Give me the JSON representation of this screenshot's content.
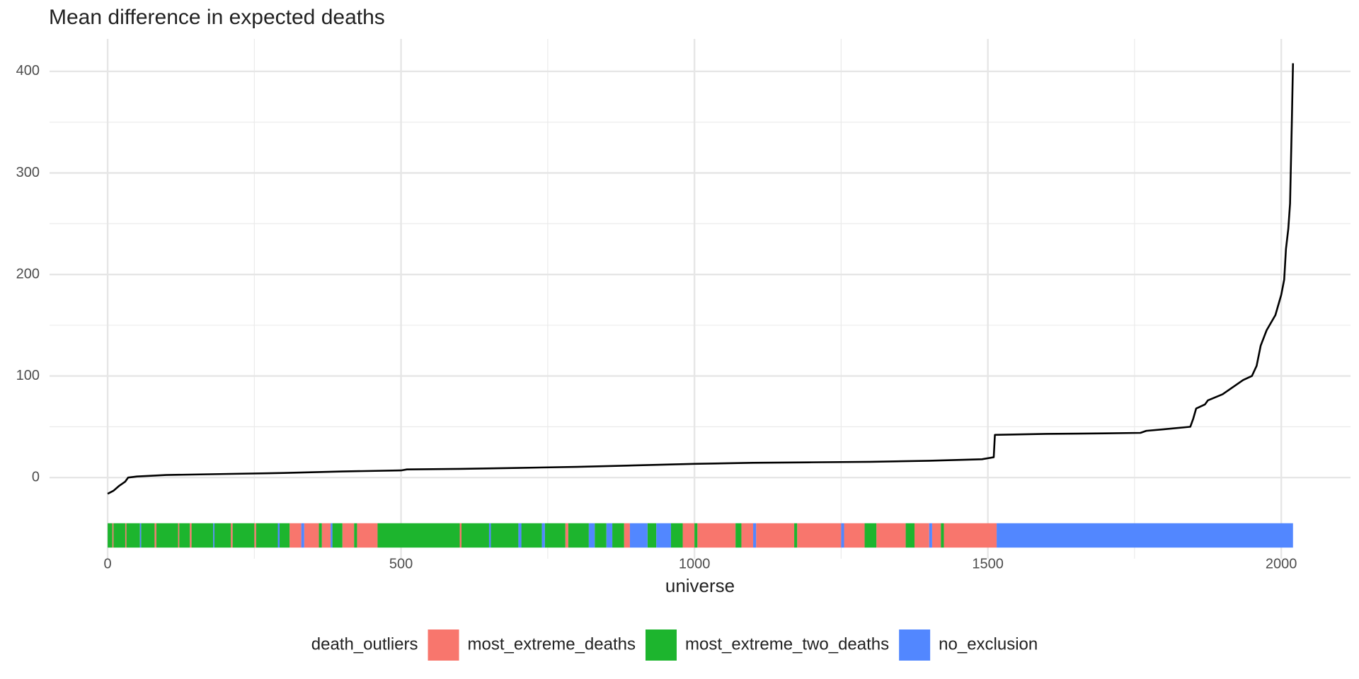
{
  "chart_data": {
    "type": "line",
    "title": "Mean difference in expected deaths",
    "x_label": "universe",
    "xlim": [
      -99,
      2118
    ],
    "xticks": [
      0,
      500,
      1000,
      1500,
      2000
    ],
    "xminor": [
      250,
      750,
      1250,
      1750
    ],
    "ylim": [
      -80,
      432
    ],
    "yticks": [
      0,
      100,
      200,
      300,
      400
    ],
    "yminor": [
      50,
      150,
      250,
      350
    ],
    "grid": true,
    "line_color": "#000000",
    "x": [
      0,
      10,
      20,
      30,
      35,
      50,
      100,
      200,
      300,
      400,
      500,
      510,
      600,
      700,
      800,
      900,
      1000,
      1100,
      1200,
      1300,
      1400,
      1490,
      1510,
      1512,
      1600,
      1700,
      1760,
      1770,
      1800,
      1845,
      1850,
      1855,
      1870,
      1875,
      1900,
      1920,
      1935,
      1950,
      1958,
      1965,
      1975,
      1990,
      2000,
      2005,
      2008,
      2012,
      2015,
      2018,
      2020
    ],
    "values": [
      -16,
      -13,
      -8,
      -4,
      0,
      1,
      2.5,
      3.5,
      4.5,
      6,
      7,
      8,
      8.5,
      9.5,
      10.5,
      12,
      13.5,
      14.5,
      15,
      15.5,
      16.5,
      18,
      20,
      42,
      43,
      43.5,
      44,
      46,
      47.5,
      50,
      58,
      68,
      72,
      76,
      82,
      90,
      96,
      100,
      110,
      130,
      145,
      160,
      180,
      195,
      225,
      245,
      270,
      350,
      408
    ],
    "legend_title": "death_outliers",
    "strip_ylim": [
      -69,
      -45
    ],
    "strip": [
      {
        "name": "most_extreme_deaths",
        "color": "#f8766d",
        "ranges": [
          [
            8,
            10
          ],
          [
            30,
            32
          ],
          [
            80,
            83
          ],
          [
            120,
            122
          ],
          [
            140,
            143
          ],
          [
            210,
            213
          ],
          [
            250,
            253
          ],
          [
            310,
            330
          ],
          [
            335,
            360
          ],
          [
            365,
            380
          ],
          [
            400,
            420
          ],
          [
            425,
            460
          ],
          [
            600,
            603
          ],
          [
            780,
            785
          ],
          [
            880,
            890
          ],
          [
            980,
            1000
          ],
          [
            1005,
            1070
          ],
          [
            1080,
            1100
          ],
          [
            1105,
            1170
          ],
          [
            1175,
            1250
          ],
          [
            1255,
            1290
          ],
          [
            1310,
            1360
          ],
          [
            1375,
            1400
          ],
          [
            1405,
            1420
          ],
          [
            1425,
            1515
          ]
        ]
      },
      {
        "name": "most_extreme_two_deaths",
        "color": "#1db52e",
        "ranges": [
          [
            0,
            8
          ],
          [
            10,
            30
          ],
          [
            32,
            55
          ],
          [
            57,
            80
          ],
          [
            83,
            120
          ],
          [
            122,
            140
          ],
          [
            143,
            180
          ],
          [
            182,
            210
          ],
          [
            213,
            250
          ],
          [
            253,
            290
          ],
          [
            293,
            310
          ],
          [
            360,
            365
          ],
          [
            383,
            400
          ],
          [
            420,
            425
          ],
          [
            460,
            600
          ],
          [
            603,
            650
          ],
          [
            653,
            700
          ],
          [
            705,
            740
          ],
          [
            745,
            780
          ],
          [
            785,
            820
          ],
          [
            830,
            850
          ],
          [
            860,
            880
          ],
          [
            920,
            935
          ],
          [
            960,
            980
          ],
          [
            1000,
            1005
          ],
          [
            1070,
            1080
          ],
          [
            1170,
            1175
          ],
          [
            1290,
            1310
          ],
          [
            1360,
            1375
          ],
          [
            1420,
            1425
          ]
        ]
      },
      {
        "name": "no_exclusion",
        "color": "#5287ff",
        "ranges": [
          [
            55,
            57
          ],
          [
            180,
            182
          ],
          [
            290,
            293
          ],
          [
            330,
            335
          ],
          [
            380,
            383
          ],
          [
            650,
            653
          ],
          [
            700,
            705
          ],
          [
            740,
            745
          ],
          [
            820,
            830
          ],
          [
            850,
            860
          ],
          [
            890,
            920
          ],
          [
            935,
            960
          ],
          [
            1100,
            1105
          ],
          [
            1250,
            1255
          ],
          [
            1400,
            1405
          ],
          [
            1515,
            2020
          ]
        ]
      }
    ]
  }
}
